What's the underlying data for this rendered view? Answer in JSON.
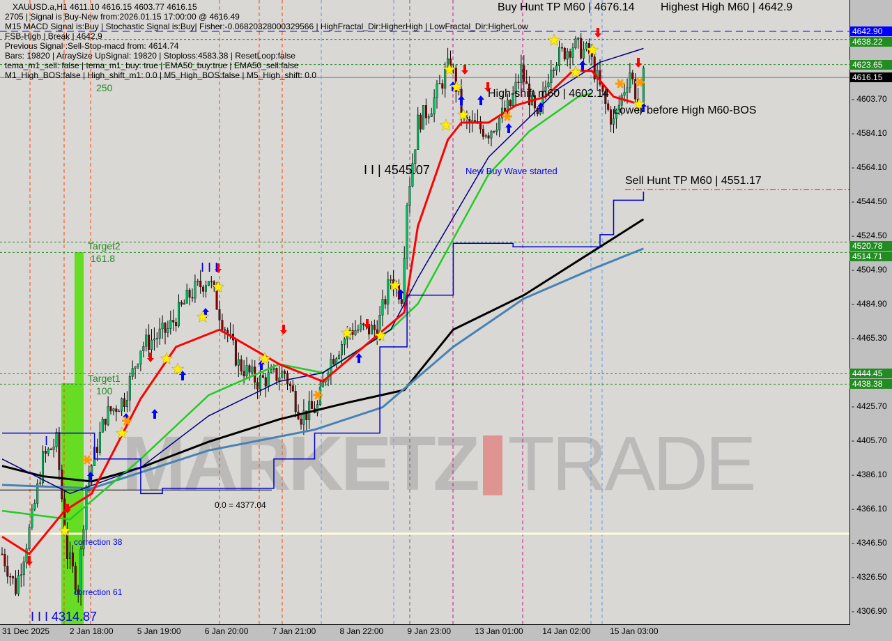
{
  "header": {
    "symbol_line": "XAUUSD.a,H1  4611.10 4616.15 4603.77 4616.15",
    "lines": [
      "2705 | Signal is Buy-New from:2026.01.15 17:00:00 @ 4616.49",
      "M15 MACD Signal is:Buy | Stochastic Signal is:Buy| Fisher:-0.06820328000329566 | HighFractal_Dir:HigherHigh | LowFractal_Dir:HigherLow",
      "Previous Signal :Sell-Stop-macd from: 4614.74",
      "Bars: 19820 | ArraySize UpSignal: 19820 | Stoploss:4583.38 | ResetLoop:false",
      "tema_m1_sell: false | tema_m1_buy: true | EMA50_buy:true | EMA50_sell:false",
      "M1_High_BOS:false | High_shift_m1: 0.0 | M5_High_BOS:false | M5_High_shift: 0.0"
    ],
    "overlap_text": "FSB-High | Break | 4642.9"
  },
  "annotations": {
    "buy_hunt": "Buy Hunt TP M60 | 4676.14",
    "highest_high": "Highest High   M60 | 4642.9",
    "high_shift": "High-shift m60 | 4602.14",
    "lower_before_high": "Lower before High   M60-BOS",
    "sell_hunt": "Sell Hunt TP M60 | 4551.17",
    "wave_level": "I I | 4545.07",
    "new_buy_wave": "New Buy Wave started",
    "target2": "Target2",
    "target2_val": "161.8",
    "target1": "Target1",
    "target1_val": "100",
    "t250": "250",
    "zero_level": "0.0 = 4377.04",
    "correction38": "correction 38",
    "correction61": "correction 61",
    "low_label": "I I I 4314.87",
    "i_mark": "I",
    "iii_mark": "I I I",
    "watermark_left": "MARKETZ",
    "watermark_right": "TRADE"
  },
  "price_axis": {
    "ticks": [
      "4603.70",
      "4584.10",
      "4564.10",
      "4544.50",
      "4524.50",
      "4504.90",
      "4484.90",
      "4465.30",
      "4425.70",
      "4405.70",
      "4386.10",
      "4366.10",
      "4346.50",
      "4326.50",
      "4306.90"
    ],
    "tags": [
      {
        "label": "4642.90",
        "color": "#0000ff"
      },
      {
        "label": "4638.22",
        "color": "#228b22"
      },
      {
        "label": "4623.65",
        "color": "#228b22"
      },
      {
        "label": "4616.15",
        "color": "#000000"
      },
      {
        "label": "4520.78",
        "color": "#228b22"
      },
      {
        "label": "4514.71",
        "color": "#228b22"
      },
      {
        "label": "4444.45",
        "color": "#228b22"
      },
      {
        "label": "4438.38",
        "color": "#228b22"
      }
    ]
  },
  "time_axis": [
    "31 Dec 2025",
    "2 Jan 18:00",
    "5 Jan 19:00",
    "6 Jan 20:00",
    "7 Jan 21:00",
    "8 Jan 22:00",
    "9 Jan 23:00",
    "13 Jan 01:00",
    "14 Jan 02:00",
    "15 Jan 03:00"
  ],
  "chart_data": {
    "type": "candlestick",
    "symbol": "XAUUSD.a",
    "timeframe": "H1",
    "ylim": [
      4300,
      4650
    ],
    "x_unit": "bar",
    "close_path": [
      [
        0,
        4340
      ],
      [
        5,
        4320
      ],
      [
        11,
        4360
      ],
      [
        15,
        4395
      ],
      [
        20,
        4405
      ],
      [
        24,
        4340
      ],
      [
        28,
        4320
      ],
      [
        31,
        4380
      ],
      [
        38,
        4420
      ],
      [
        45,
        4430
      ],
      [
        51,
        4460
      ],
      [
        61,
        4470
      ],
      [
        69,
        4490
      ],
      [
        76,
        4500
      ],
      [
        80,
        4480
      ],
      [
        87,
        4450
      ],
      [
        94,
        4440
      ],
      [
        104,
        4445
      ],
      [
        110,
        4420
      ],
      [
        116,
        4425
      ],
      [
        120,
        4450
      ],
      [
        128,
        4470
      ],
      [
        138,
        4470
      ],
      [
        143,
        4500
      ],
      [
        147,
        4490
      ],
      [
        149,
        4545
      ],
      [
        153,
        4590
      ],
      [
        158,
        4600
      ],
      [
        165,
        4625
      ],
      [
        170,
        4590
      ],
      [
        179,
        4585
      ],
      [
        187,
        4600
      ],
      [
        191,
        4620
      ],
      [
        197,
        4590
      ],
      [
        202,
        4625
      ],
      [
        210,
        4635
      ],
      [
        216,
        4630
      ],
      [
        222,
        4600
      ],
      [
        225,
        4590
      ],
      [
        231,
        4620
      ],
      [
        235,
        4595
      ],
      [
        236,
        4616
      ]
    ],
    "series": [
      {
        "color": "#000000",
        "path": [
          [
            0,
            4391
          ],
          [
            15,
            4385
          ],
          [
            33,
            4382
          ],
          [
            51,
            4390
          ],
          [
            76,
            4405
          ],
          [
            102,
            4418
          ],
          [
            128,
            4428
          ],
          [
            148,
            4435
          ],
          [
            166,
            4470
          ],
          [
            192,
            4490
          ],
          [
            217,
            4515
          ],
          [
            236,
            4534
          ]
        ]
      },
      {
        "color": "#4682b4",
        "path": [
          [
            0,
            4380
          ],
          [
            33,
            4378
          ],
          [
            76,
            4400
          ],
          [
            115,
            4412
          ],
          [
            140,
            4425
          ],
          [
            166,
            4460
          ],
          [
            192,
            4488
          ],
          [
            217,
            4505
          ],
          [
            236,
            4517
          ]
        ]
      },
      {
        "color": "#22cc22",
        "path": [
          [
            0,
            4365
          ],
          [
            25,
            4360
          ],
          [
            51,
            4395
          ],
          [
            76,
            4432
          ],
          [
            102,
            4450
          ],
          [
            118,
            4445
          ],
          [
            143,
            4470
          ],
          [
            153,
            4485
          ],
          [
            179,
            4560
          ],
          [
            194,
            4585
          ],
          [
            212,
            4605
          ],
          [
            217,
            4607
          ]
        ]
      },
      {
        "color": "#000080",
        "path": [
          [
            0,
            4395
          ],
          [
            25,
            4375
          ],
          [
            51,
            4390
          ],
          [
            76,
            4420
          ],
          [
            102,
            4440
          ],
          [
            118,
            4445
          ],
          [
            143,
            4470
          ],
          [
            153,
            4500
          ],
          [
            179,
            4570
          ],
          [
            205,
            4610
          ],
          [
            220,
            4625
          ],
          [
            236,
            4633
          ]
        ]
      },
      {
        "color": "#ff0000",
        "path": [
          [
            0,
            4350
          ],
          [
            10,
            4340
          ],
          [
            23,
            4365
          ],
          [
            33,
            4375
          ],
          [
            51,
            4430
          ],
          [
            64,
            4460
          ],
          [
            80,
            4470
          ],
          [
            102,
            4450
          ],
          [
            118,
            4440
          ],
          [
            133,
            4460
          ],
          [
            148,
            4480
          ],
          [
            153,
            4530
          ],
          [
            164,
            4580
          ],
          [
            169,
            4590
          ],
          [
            179,
            4590
          ],
          [
            189,
            4600
          ],
          [
            200,
            4605
          ],
          [
            210,
            4620
          ],
          [
            217,
            4620
          ],
          [
            225,
            4605
          ],
          [
            236,
            4600
          ]
        ]
      },
      {
        "color": "#0000cc",
        "step": true,
        "path": [
          [
            0,
            4410
          ],
          [
            33,
            4410
          ],
          [
            34,
            4395
          ],
          [
            51,
            4375
          ],
          [
            59,
            4378
          ],
          [
            97,
            4378
          ],
          [
            100,
            4395
          ],
          [
            115,
            4410
          ],
          [
            133,
            4410
          ],
          [
            139,
            4460
          ],
          [
            149,
            4490
          ],
          [
            166,
            4520
          ],
          [
            188,
            4518
          ],
          [
            220,
            4525
          ],
          [
            225,
            4545
          ],
          [
            236,
            4550
          ]
        ]
      }
    ],
    "levels": [
      {
        "price": 4642.9,
        "color": "#0000ff",
        "style": "dashed"
      },
      {
        "price": 4638.22,
        "color": "#228b22",
        "style": "dotted"
      },
      {
        "price": 4623.65,
        "color": "#228b22",
        "style": "dotted"
      },
      {
        "price": 4616.15,
        "color": "#708090",
        "style": "solid"
      },
      {
        "price": 4551.17,
        "color": "#ff0000",
        "style": "dashdot"
      },
      {
        "price": 4520.78,
        "color": "#228b22",
        "style": "dotted"
      },
      {
        "price": 4514.71,
        "color": "#228b22",
        "style": "dotted"
      },
      {
        "price": 4444.45,
        "color": "#228b22",
        "style": "dotted"
      },
      {
        "price": 4438.38,
        "color": "#228b22",
        "style": "dotted"
      },
      {
        "price": 4377.04,
        "color": "#000000",
        "style": "solid"
      },
      {
        "price": 4351.7,
        "color": "#fffde0",
        "style": "solid"
      }
    ]
  }
}
